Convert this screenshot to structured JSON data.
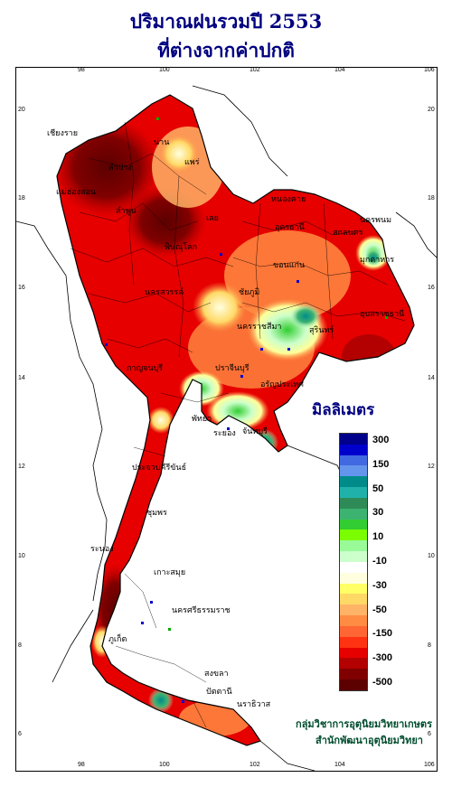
{
  "title": {
    "line1": "ปริมาณฝนรวมปี  2553",
    "line2": "ที่ต่างจากค่าปกติ"
  },
  "axes": {
    "longitude_ticks": [
      "98",
      "100",
      "102",
      "104",
      "106"
    ],
    "latitude_ticks": [
      "20",
      "18",
      "16",
      "14",
      "12",
      "10",
      "8",
      "6"
    ]
  },
  "legend": {
    "title": "มิลลิเมตร",
    "labels": [
      "300",
      "150",
      "50",
      "30",
      "10",
      "-10",
      "-30",
      "-50",
      "-150",
      "-300",
      "-500"
    ],
    "colors": [
      "#00008b",
      "#0000cd",
      "#4169e1",
      "#6495ed",
      "#008b8b",
      "#20b2aa",
      "#2e8b57",
      "#3cb371",
      "#32cd32",
      "#7cfc00",
      "#98fb98",
      "#ccffcc",
      "#ffffff",
      "#ffffe0",
      "#ffff66",
      "#ffd966",
      "#ffb366",
      "#ff8c42",
      "#ff6633",
      "#ff3311",
      "#e60000",
      "#b30000",
      "#800000",
      "#5c0000"
    ]
  },
  "provinces": [
    "เชียงราย",
    "น่าน",
    "แพร่",
    "ลำปาง",
    "ลำพูน",
    "แม่ฮ่องสอน",
    "พิษณุโลก",
    "หนองคาย",
    "นครพนม",
    "มุกดาหาร",
    "ขอนแก่น",
    "สกลนคร",
    "นครราชสีมา",
    "อุบลราชธานี",
    "สุรินทร์",
    "ชัยภูมิ",
    "เลย",
    "อุดรธานี",
    "นครสวรรค์",
    "กาญจนบุรี",
    "ปราจีนบุรี",
    "อรัญประเทศ",
    "พัทยา",
    "ระยอง",
    "จันทบุรี",
    "ประจวบคีรีขันธ์",
    "ชุมพร",
    "ระนอง",
    "นครศรีธรรมราช",
    "ภูเก็ต",
    "สงขลา",
    "ปัตตานี",
    "นราธิวาส",
    "เกาะสมุย"
  ],
  "credit": {
    "line1": "กลุ่มวิชาการอุตุนิยมวิทยาเกษตร",
    "line2": "สำนักพัฒนาอุตุนิยมวิทยา"
  },
  "colors": {
    "title": "#000080",
    "credit": "#004d2e",
    "deficit_deep": "#800000",
    "deficit": "#e60000",
    "deficit_light": "#ff8c42",
    "normal": "#ffffe0",
    "surplus": "#32cd32",
    "surplus_strong": "#008b8b"
  }
}
